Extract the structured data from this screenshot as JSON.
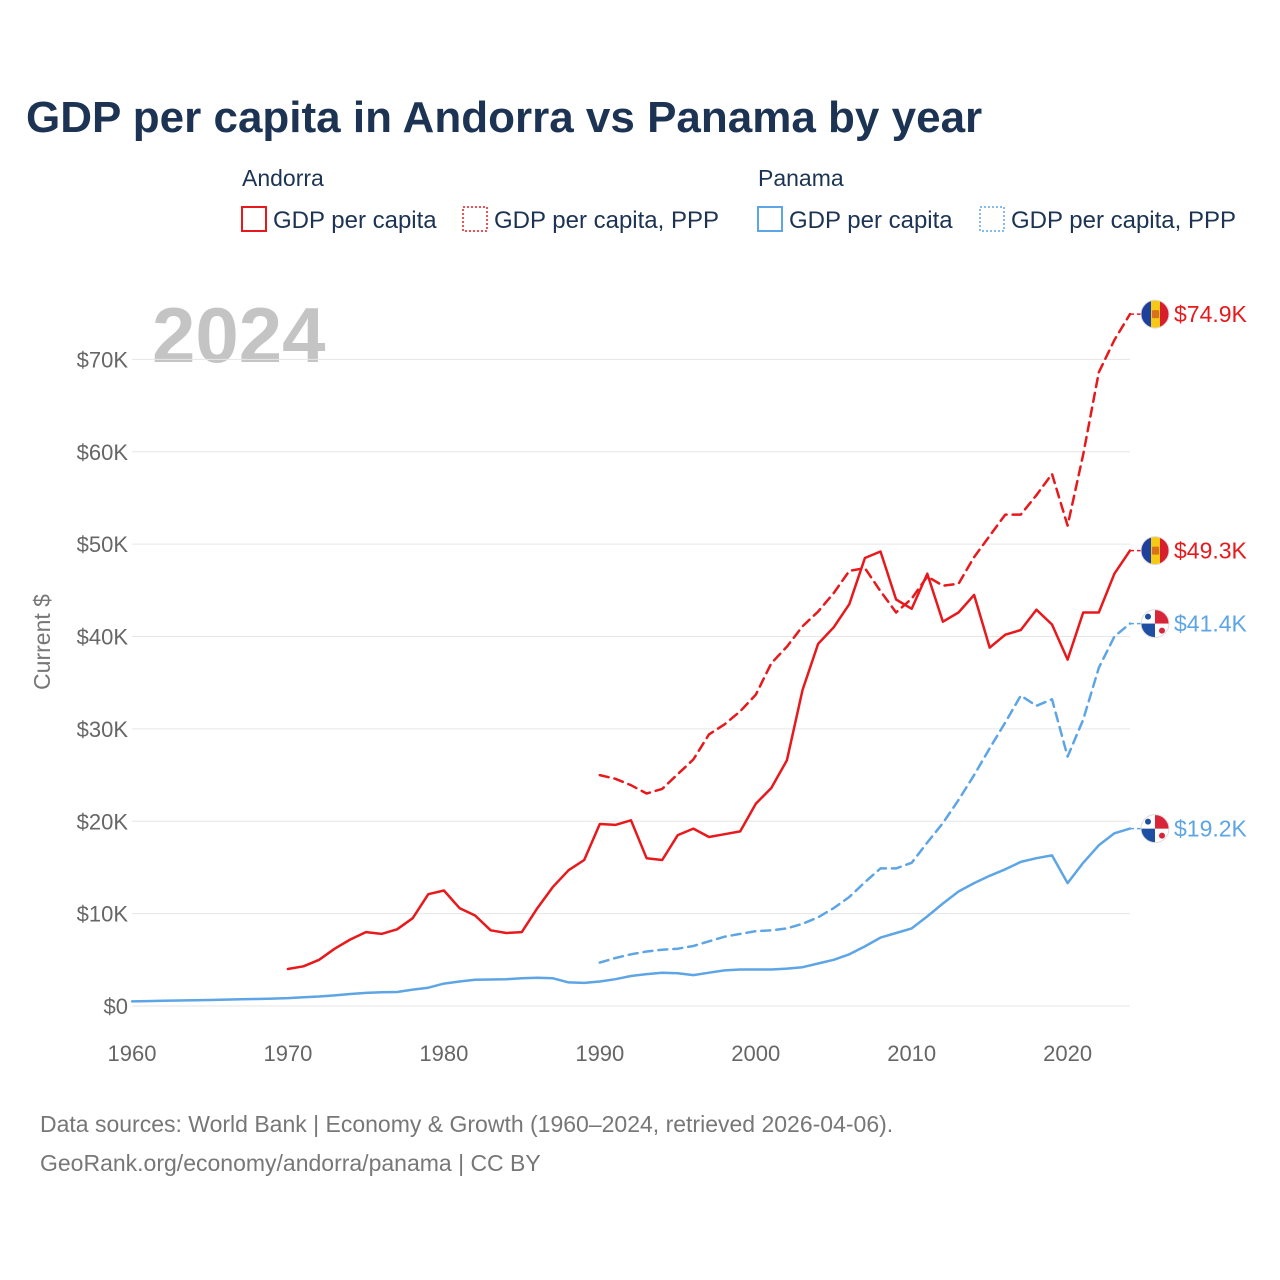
{
  "chart_data": {
    "type": "line",
    "title": "GDP per capita in Andorra vs Panama by year",
    "year_label": "2024",
    "ylabel": "Current $",
    "xlim": [
      1960,
      2024
    ],
    "ylim": [
      0,
      80000
    ],
    "x_ticks": [
      1960,
      1970,
      1980,
      1990,
      2000,
      2010,
      2020
    ],
    "x_tick_labels": [
      "1960",
      "1970",
      "1980",
      "1990",
      "2000",
      "2010",
      "2020"
    ],
    "y_ticks": [
      0,
      10000,
      20000,
      30000,
      40000,
      50000,
      60000,
      70000
    ],
    "y_tick_labels": [
      "$0",
      "$10K",
      "$20K",
      "$30K",
      "$40K",
      "$50K",
      "$60K",
      "$70K"
    ],
    "grid": true,
    "legend": {
      "groups": [
        {
          "name": "Andorra",
          "items": [
            "GDP per capita",
            "GDP per capita, PPP"
          ]
        },
        {
          "name": "Panama",
          "items": [
            "GDP per capita",
            "GDP per capita, PPP"
          ]
        }
      ]
    },
    "series": [
      {
        "name": "Andorra GDP per capita",
        "country": "Andorra",
        "style": "solid",
        "color": "#e8191c",
        "end_label": "$49.3K",
        "x": [
          1970,
          1971,
          1972,
          1973,
          1974,
          1975,
          1976,
          1977,
          1978,
          1979,
          1980,
          1981,
          1982,
          1983,
          1984,
          1985,
          1986,
          1987,
          1988,
          1989,
          1990,
          1991,
          1992,
          1993,
          1994,
          1995,
          1996,
          1997,
          1998,
          1999,
          2000,
          2001,
          2002,
          2003,
          2004,
          2005,
          2006,
          2007,
          2008,
          2009,
          2010,
          2011,
          2012,
          2013,
          2014,
          2015,
          2016,
          2017,
          2018,
          2019,
          2020,
          2021,
          2022,
          2023,
          2024
        ],
        "values": [
          4000,
          4300,
          5000,
          6200,
          7200,
          8000,
          7800,
          8300,
          9500,
          12100,
          12500,
          10600,
          9800,
          8200,
          7900,
          8000,
          10600,
          12900,
          14700,
          15800,
          19700,
          19600,
          20100,
          16000,
          15800,
          18500,
          19200,
          18300,
          18600,
          18900,
          21900,
          23600,
          26600,
          34200,
          39200,
          41000,
          43500,
          48500,
          49200,
          44000,
          43000,
          46800,
          41600,
          42600,
          44500,
          38800,
          40200,
          40700,
          42900,
          41300,
          37500,
          42600,
          42600,
          46800,
          49300
        ]
      },
      {
        "name": "Andorra GDP per capita, PPP",
        "country": "Andorra",
        "style": "dashed",
        "color": "#e8191c",
        "end_label": "$74.9K",
        "x": [
          1990,
          1991,
          1992,
          1993,
          1994,
          1995,
          1996,
          1997,
          1998,
          1999,
          2000,
          2001,
          2002,
          2003,
          2004,
          2005,
          2006,
          2007,
          2008,
          2009,
          2010,
          2011,
          2012,
          2013,
          2014,
          2015,
          2016,
          2017,
          2018,
          2019,
          2020,
          2021,
          2022,
          2023,
          2024
        ],
        "values": [
          25000,
          24600,
          23900,
          23000,
          23500,
          25100,
          26700,
          29400,
          30500,
          31900,
          33700,
          37100,
          38900,
          41100,
          42700,
          44700,
          47100,
          47400,
          44900,
          42600,
          44100,
          46500,
          45500,
          45700,
          48600,
          50900,
          53200,
          53200,
          55300,
          57600,
          52000,
          59700,
          68600,
          72100,
          74900
        ]
      },
      {
        "name": "Panama GDP per capita",
        "country": "Panama",
        "style": "solid",
        "color": "#5ea5e5",
        "end_label": "$19.2K",
        "x": [
          1960,
          1961,
          1962,
          1963,
          1964,
          1965,
          1966,
          1967,
          1968,
          1969,
          1970,
          1971,
          1972,
          1973,
          1974,
          1975,
          1976,
          1977,
          1978,
          1979,
          1980,
          1981,
          1982,
          1983,
          1984,
          1985,
          1986,
          1987,
          1988,
          1989,
          1990,
          1991,
          1992,
          1993,
          1994,
          1995,
          1996,
          1997,
          1998,
          1999,
          2000,
          2001,
          2002,
          2003,
          2004,
          2005,
          2006,
          2007,
          2008,
          2009,
          2010,
          2011,
          2012,
          2013,
          2014,
          2015,
          2016,
          2017,
          2018,
          2019,
          2020,
          2021,
          2022,
          2023,
          2024
        ],
        "values": [
          500,
          530,
          560,
          590,
          620,
          650,
          690,
          730,
          760,
          800,
          850,
          950,
          1030,
          1150,
          1300,
          1420,
          1480,
          1520,
          1780,
          1980,
          2420,
          2650,
          2850,
          2870,
          2900,
          3000,
          3050,
          3000,
          2550,
          2500,
          2650,
          2900,
          3250,
          3450,
          3600,
          3550,
          3350,
          3600,
          3850,
          3950,
          3950,
          3950,
          4050,
          4200,
          4600,
          5000,
          5600,
          6450,
          7400,
          7900,
          8400,
          9700,
          11100,
          12400,
          13300,
          14100,
          14800,
          15600,
          16000,
          16300,
          13300,
          15500,
          17400,
          18700,
          19200
        ]
      },
      {
        "name": "Panama GDP per capita, PPP",
        "country": "Panama",
        "style": "dashed",
        "color": "#5ea5e5",
        "end_label": "$41.4K",
        "x": [
          1990,
          1991,
          1992,
          1993,
          1994,
          1995,
          1996,
          1997,
          1998,
          1999,
          2000,
          2001,
          2002,
          2003,
          2004,
          2005,
          2006,
          2007,
          2008,
          2009,
          2010,
          2011,
          2012,
          2013,
          2014,
          2015,
          2016,
          2017,
          2018,
          2019,
          2020,
          2021,
          2022,
          2023,
          2024
        ],
        "values": [
          4700,
          5200,
          5600,
          5900,
          6100,
          6200,
          6500,
          7000,
          7500,
          7800,
          8100,
          8200,
          8400,
          8900,
          9600,
          10600,
          11800,
          13400,
          14900,
          14900,
          15500,
          17700,
          19800,
          22300,
          25000,
          27900,
          30700,
          33600,
          32500,
          33200,
          27000,
          31000,
          36600,
          40000,
          41400
        ]
      }
    ]
  },
  "source": {
    "line1": "Data sources: World Bank | Economy & Growth (1960–2024, retrieved 2026-04-06).",
    "line2": "GeoRank.org/economy/andorra/panama | CC BY"
  }
}
